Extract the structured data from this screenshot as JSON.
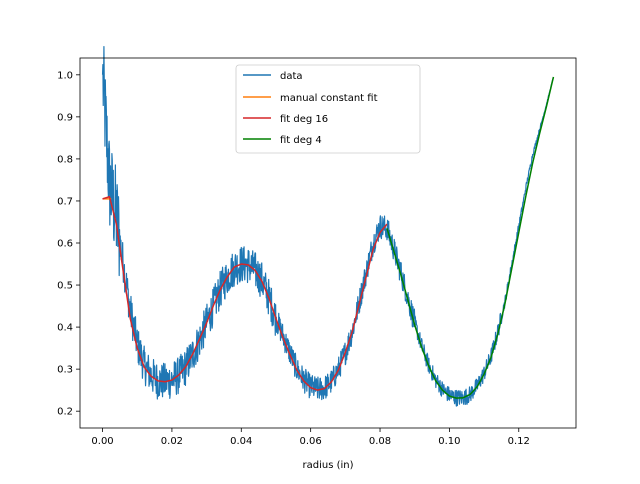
{
  "chart_data": {
    "type": "line",
    "title": "",
    "xlabel": "radius (in)",
    "ylabel": "",
    "xlim": [
      -0.0065,
      0.1365
    ],
    "ylim": [
      0.16,
      1.04
    ],
    "xticks": [
      0.0,
      0.02,
      0.04,
      0.06,
      0.08,
      0.1,
      0.12
    ],
    "xtick_labels": [
      "0.00",
      "0.02",
      "0.04",
      "0.06",
      "0.08",
      "0.10",
      "0.12"
    ],
    "yticks": [
      0.2,
      0.3,
      0.4,
      0.5,
      0.6,
      0.7,
      0.8,
      0.9,
      1.0
    ],
    "ytick_labels": [
      "0.2",
      "0.3",
      "0.4",
      "0.5",
      "0.6",
      "0.7",
      "0.8",
      "0.9",
      "1.0"
    ],
    "grid": false,
    "legend_position": "top-center",
    "series": [
      {
        "name": "data",
        "color": "#1f77b4",
        "noisy": true,
        "x": [
          0.0,
          0.002,
          0.004,
          0.006,
          0.008,
          0.01,
          0.012,
          0.014,
          0.016,
          0.018,
          0.02,
          0.022,
          0.024,
          0.026,
          0.028,
          0.03,
          0.032,
          0.034,
          0.036,
          0.038,
          0.04,
          0.042,
          0.044,
          0.046,
          0.048,
          0.05,
          0.052,
          0.054,
          0.056,
          0.058,
          0.06,
          0.062,
          0.064,
          0.066,
          0.068,
          0.07,
          0.072,
          0.074,
          0.076,
          0.078,
          0.08,
          0.082,
          0.084,
          0.086,
          0.088,
          0.09,
          0.092,
          0.094,
          0.096,
          0.098,
          0.1,
          0.102,
          0.104,
          0.106,
          0.108,
          0.11,
          0.112,
          0.114,
          0.116,
          0.118,
          0.12,
          0.122,
          0.124,
          0.126,
          0.128,
          0.13
        ],
        "y": [
          1.0,
          0.74,
          0.66,
          0.55,
          0.44,
          0.36,
          0.31,
          0.285,
          0.272,
          0.27,
          0.274,
          0.285,
          0.305,
          0.335,
          0.37,
          0.41,
          0.45,
          0.49,
          0.52,
          0.542,
          0.55,
          0.548,
          0.535,
          0.51,
          0.47,
          0.42,
          0.38,
          0.34,
          0.3,
          0.275,
          0.258,
          0.252,
          0.255,
          0.27,
          0.3,
          0.34,
          0.39,
          0.46,
          0.53,
          0.6,
          0.64,
          0.635,
          0.585,
          0.53,
          0.47,
          0.41,
          0.355,
          0.31,
          0.275,
          0.252,
          0.238,
          0.232,
          0.232,
          0.24,
          0.26,
          0.29,
          0.33,
          0.39,
          0.46,
          0.55,
          0.64,
          0.73,
          0.81,
          0.87,
          0.93,
          0.995
        ]
      },
      {
        "name": "manual constant fit",
        "color": "#ff7f0e",
        "x": [
          0.0,
          0.0025
        ],
        "y": [
          0.705,
          0.705
        ]
      },
      {
        "name": "fit deg 16",
        "color": "#d62728",
        "x": [
          0.0,
          0.002,
          0.004,
          0.006,
          0.008,
          0.01,
          0.012,
          0.014,
          0.016,
          0.018,
          0.02,
          0.022,
          0.024,
          0.026,
          0.028,
          0.03,
          0.032,
          0.034,
          0.036,
          0.038,
          0.04,
          0.042,
          0.044,
          0.046,
          0.048,
          0.05,
          0.052,
          0.054,
          0.056,
          0.058,
          0.06,
          0.062,
          0.064,
          0.066,
          0.068,
          0.07,
          0.072,
          0.074,
          0.076,
          0.078,
          0.08,
          0.082
        ],
        "y": [
          0.705,
          0.71,
          0.645,
          0.53,
          0.42,
          0.35,
          0.305,
          0.283,
          0.272,
          0.27,
          0.274,
          0.286,
          0.306,
          0.336,
          0.372,
          0.41,
          0.452,
          0.49,
          0.52,
          0.543,
          0.55,
          0.548,
          0.535,
          0.508,
          0.468,
          0.42,
          0.375,
          0.335,
          0.298,
          0.272,
          0.256,
          0.25,
          0.254,
          0.27,
          0.298,
          0.34,
          0.39,
          0.455,
          0.52,
          0.585,
          0.625,
          0.645
        ]
      },
      {
        "name": "fit deg 4",
        "color": "#008000",
        "x": [
          0.082,
          0.084,
          0.086,
          0.088,
          0.09,
          0.092,
          0.094,
          0.096,
          0.098,
          0.1,
          0.102,
          0.104,
          0.106,
          0.108,
          0.11,
          0.112,
          0.114,
          0.116,
          0.118,
          0.12,
          0.122,
          0.124,
          0.126,
          0.128,
          0.13
        ],
        "y": [
          0.635,
          0.58,
          0.525,
          0.465,
          0.405,
          0.352,
          0.308,
          0.273,
          0.25,
          0.236,
          0.231,
          0.232,
          0.24,
          0.258,
          0.288,
          0.328,
          0.385,
          0.455,
          0.54,
          0.625,
          0.71,
          0.79,
          0.86,
          0.925,
          0.995
        ]
      }
    ]
  }
}
